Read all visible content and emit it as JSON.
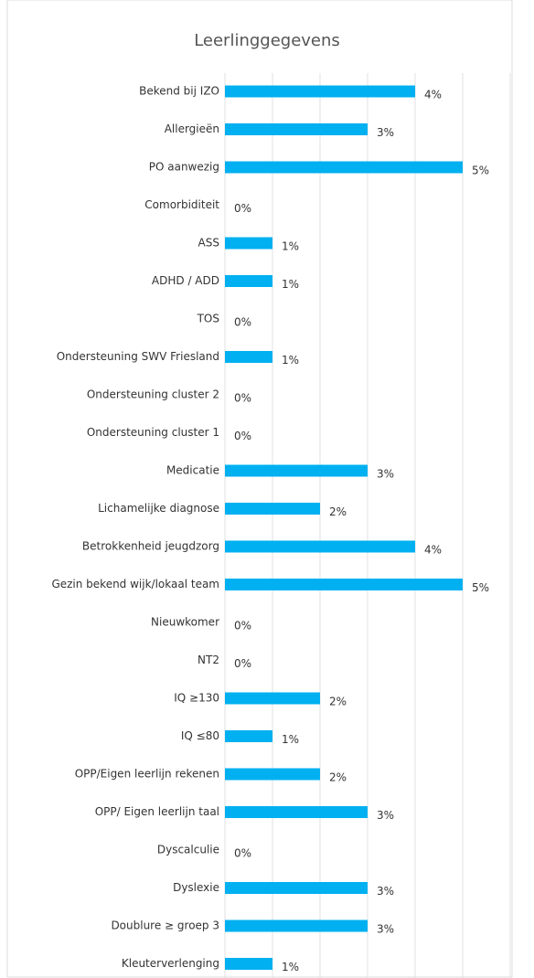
{
  "chart_data": {
    "type": "barh",
    "title": "Leerlinggegevens",
    "categories": [
      "Bekend bij IZO",
      "Allergieën",
      "PO aanwezig",
      "Comorbiditeit",
      "ASS",
      "ADHD / ADD",
      "TOS",
      "Ondersteuning SWV Friesland",
      "Ondersteuning cluster 2",
      "Ondersteuning cluster 1",
      "Medicatie",
      "Lichamelijke diagnose",
      "Betrokkenheid jeugdzorg",
      "Gezin bekend wijk/lokaal team",
      "Nieuwkomer",
      "NT2",
      "IQ ≥130",
      "IQ ≤80",
      "OPP/Eigen leerlijn rekenen",
      "OPP/ Eigen leerlijn taal",
      "Dyscalculie",
      "Dyslexie",
      "Doublure ≥ groep 3",
      "Kleuterverlenging"
    ],
    "values": [
      4,
      3,
      5,
      0,
      1,
      1,
      0,
      1,
      0,
      0,
      3,
      2,
      4,
      5,
      0,
      0,
      2,
      1,
      2,
      3,
      0,
      3,
      3,
      1
    ],
    "value_labels": [
      "4%",
      "3%",
      "5%",
      "0%",
      "1%",
      "1%",
      "0%",
      "1%",
      "0%",
      "0%",
      "3%",
      "2%",
      "4%",
      "5%",
      "0%",
      "0%",
      "2%",
      "1%",
      "2%",
      "3%",
      "0%",
      "3%",
      "3%",
      "1%"
    ],
    "color": "#00b0f0",
    "xlim": [
      0,
      6
    ],
    "xticks": [
      0,
      1,
      2,
      3,
      4,
      5,
      6
    ],
    "grid": true
  }
}
